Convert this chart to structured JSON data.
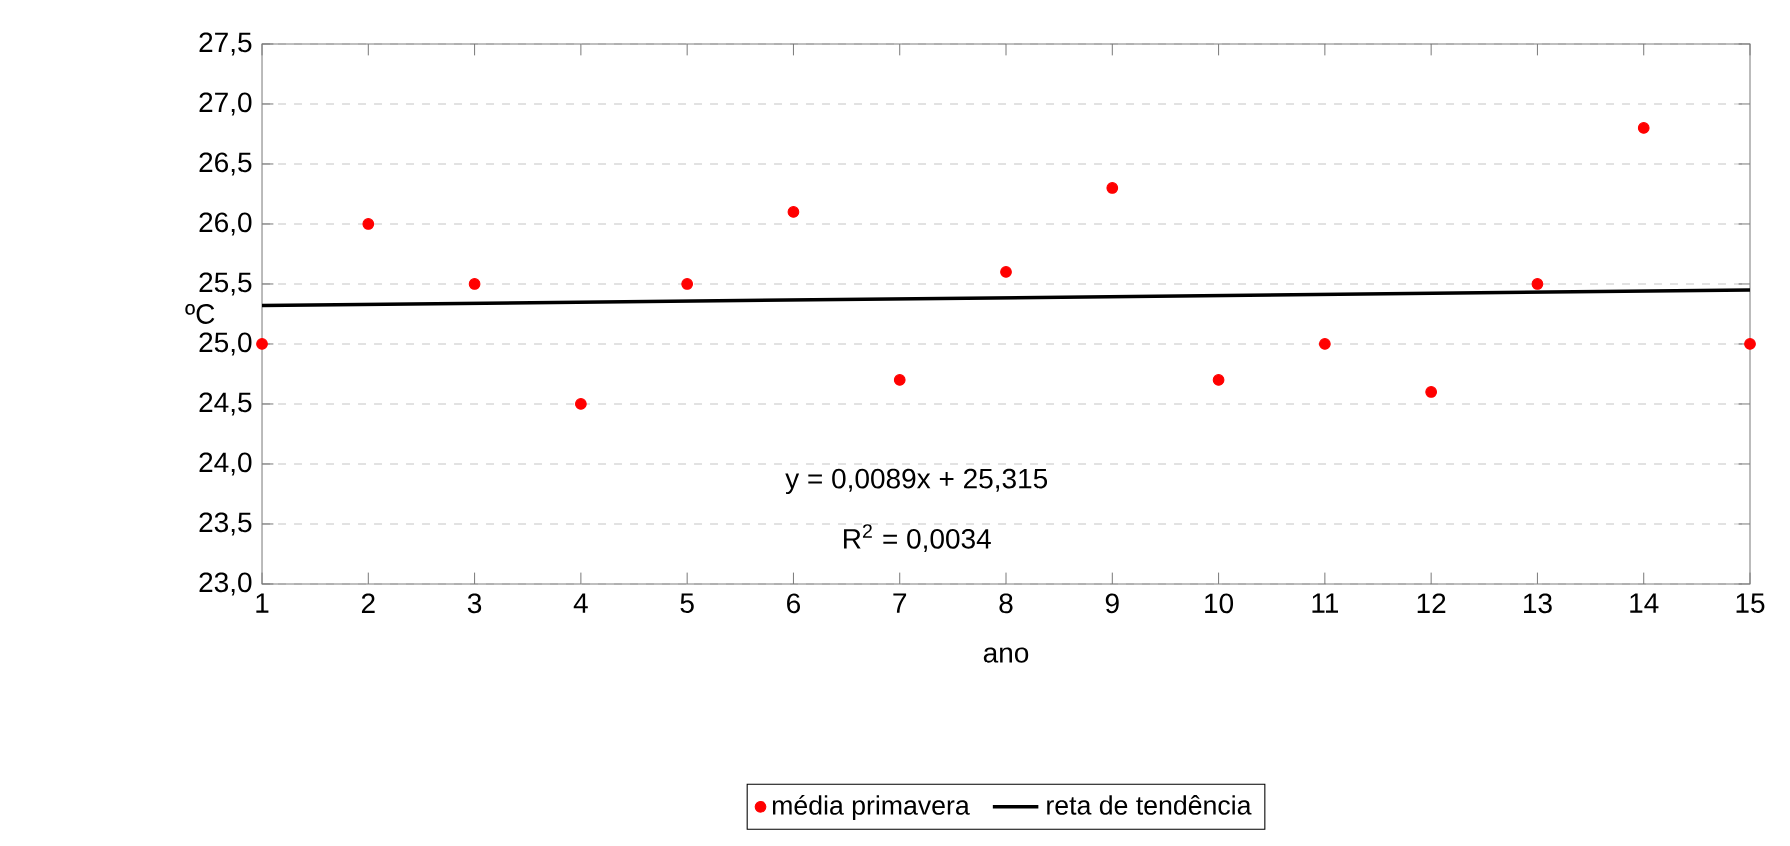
{
  "chart_data": {
    "type": "scatter",
    "xlabel": "ano",
    "ylabel": "ºC",
    "x": [
      1,
      2,
      3,
      4,
      5,
      6,
      7,
      8,
      9,
      10,
      11,
      12,
      13,
      14,
      15
    ],
    "series": [
      {
        "name": "média primavera",
        "marker": "circle",
        "color": "#ff0000",
        "values": [
          25.0,
          26.0,
          25.5,
          24.5,
          25.5,
          26.1,
          24.7,
          25.6,
          26.3,
          24.7,
          25.0,
          24.6,
          25.5,
          26.8,
          25.0
        ]
      },
      {
        "name": "reta de tendência",
        "type": "line",
        "marker": "none",
        "line_style": "solid",
        "color": "#000000",
        "x": [
          1,
          15
        ],
        "values": [
          25.32,
          25.45
        ]
      }
    ],
    "xlim": [
      1,
      15
    ],
    "xticks": [
      1,
      2,
      3,
      4,
      5,
      6,
      7,
      8,
      9,
      10,
      11,
      12,
      13,
      14,
      15
    ],
    "ylim": [
      23,
      27.5
    ],
    "yticks": [
      {
        "value": 23,
        "label": "23,0"
      },
      {
        "value": 23.5,
        "label": "23,5"
      },
      {
        "value": 24,
        "label": "24,0"
      },
      {
        "value": 24.5,
        "label": "24,5"
      },
      {
        "value": 25,
        "label": "25,0"
      },
      {
        "value": 25.5,
        "label": "25,5"
      },
      {
        "value": 26,
        "label": "26,0"
      },
      {
        "value": 26.5,
        "label": "26,5"
      },
      {
        "value": 27,
        "label": "27,0"
      },
      {
        "value": 27.5,
        "label": "27,5"
      }
    ],
    "grid": "y",
    "legend": "bottom",
    "annotations": [
      "y = 0,0089x + 25,315",
      "R$^{2}$ = 0,0034"
    ]
  }
}
